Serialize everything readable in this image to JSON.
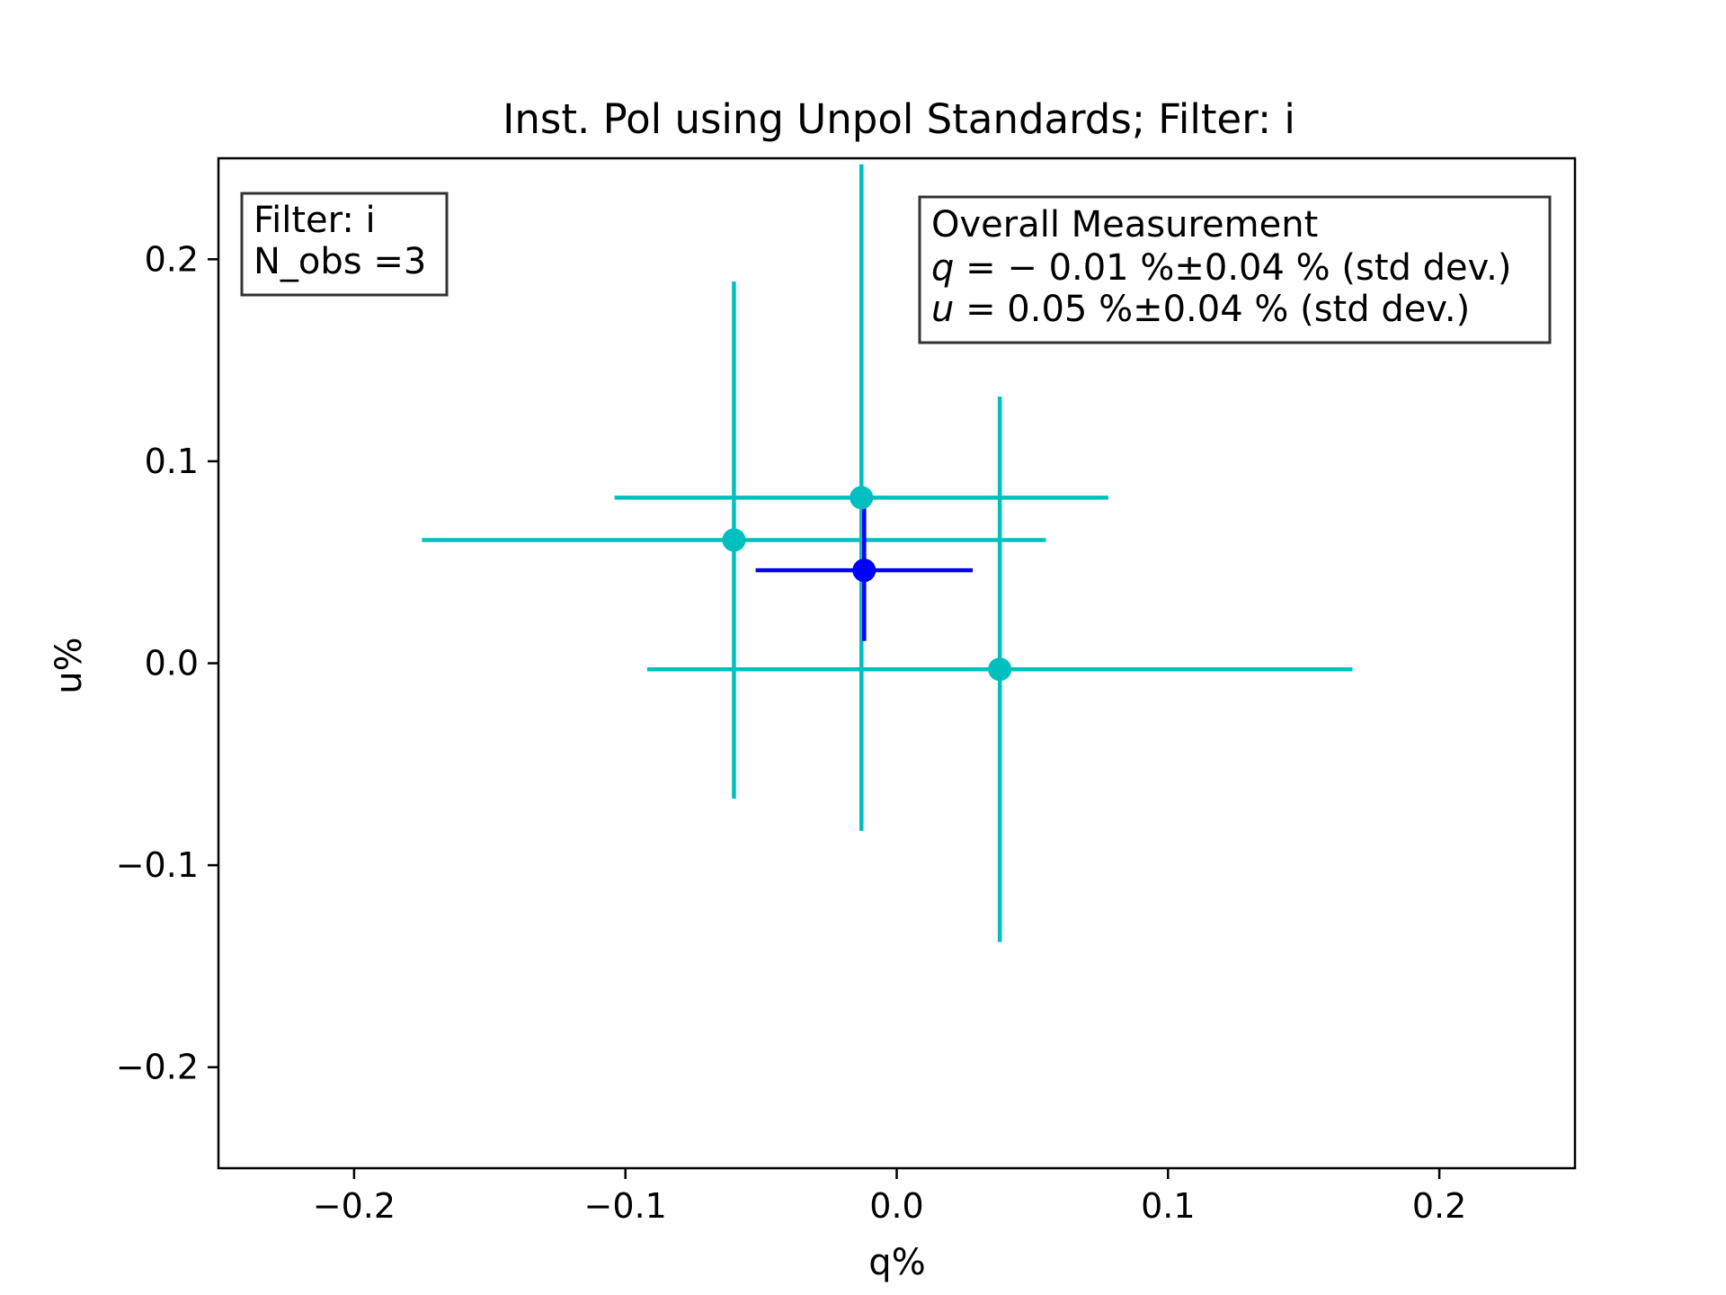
{
  "chart_data": {
    "type": "scatter",
    "title": "Inst. Pol using Unpol Standards; Filter: i",
    "xlabel": "q%",
    "ylabel": "u%",
    "xlim": [
      -0.25,
      0.25
    ],
    "ylim": [
      -0.25,
      0.25
    ],
    "xticks": [
      -0.2,
      -0.1,
      0.0,
      0.1,
      0.2
    ],
    "yticks": [
      -0.2,
      -0.1,
      0.0,
      0.1,
      0.2
    ],
    "xtick_labels": [
      "−0.2",
      "−0.1",
      "0.0",
      "0.1",
      "0.2"
    ],
    "ytick_labels": [
      "−0.2",
      "−0.1",
      "0.0",
      "0.1",
      "0.2"
    ],
    "grid": false,
    "series": [
      {
        "color": "#00bfbf",
        "points": [
          {
            "x": -0.06,
            "y": 0.061,
            "xerr": [
              0.115,
              0.115
            ],
            "yerr": [
              0.128,
              0.128
            ]
          },
          {
            "x": -0.013,
            "y": 0.082,
            "xerr": [
              0.091,
              0.091
            ],
            "yerr": [
              0.165,
              0.165
            ]
          },
          {
            "x": 0.038,
            "y": -0.003,
            "xerr": [
              0.13,
              0.13
            ],
            "yerr": [
              0.135,
              0.135
            ]
          }
        ]
      },
      {
        "color": "#0000ff",
        "points": [
          {
            "x": -0.012,
            "y": 0.046,
            "xerr": [
              0.04,
              0.04
            ],
            "yerr": [
              0.035,
              0.035
            ]
          }
        ]
      }
    ],
    "annotations": {
      "filter_box": {
        "line1": "Filter: i",
        "line2": "N_obs =3"
      },
      "overall_box": {
        "heading": "Overall Measurement",
        "q_var": "q",
        "q_text": " = − 0.01 %±0.04 % (std dev.)",
        "u_var": "u",
        "u_text": " = 0.05 %±0.04 % (std dev.)"
      }
    }
  }
}
